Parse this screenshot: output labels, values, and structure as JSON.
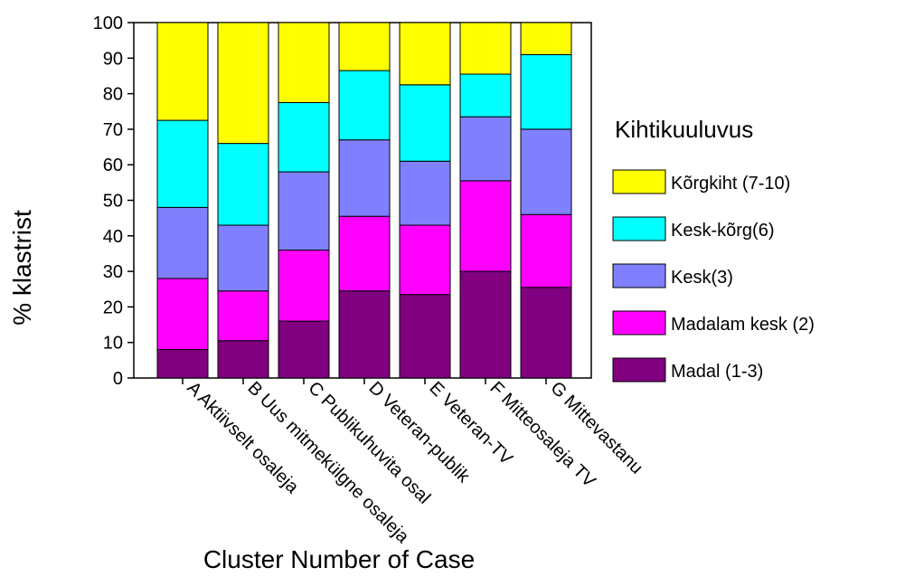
{
  "chart_data": {
    "type": "bar",
    "stacked": true,
    "categories": [
      "A Aktiivselt osaleja",
      "B Uus mitmekülgne osaleja",
      "C Publikuhuvita osal",
      "D Veteran-publik",
      "E Veteran-TV",
      "F Mitteosaleja TV",
      "G Mittevastanu"
    ],
    "series": [
      {
        "name": "Madal (1-3)",
        "color": "#800080",
        "values": [
          8,
          10.5,
          16,
          24.5,
          23.5,
          30,
          25.5
        ]
      },
      {
        "name": "Madalam kesk (2)",
        "color": "#ff00ff",
        "values": [
          20,
          14,
          20,
          21,
          19.5,
          25.5,
          20.5
        ]
      },
      {
        "name": "Kesk(3)",
        "color": "#8080ff",
        "values": [
          20,
          18.5,
          22,
          21.5,
          18,
          18,
          24
        ]
      },
      {
        "name": "Kesk-kõrg(6)",
        "color": "#00ffff",
        "values": [
          24.5,
          23,
          19.5,
          19.5,
          21.5,
          12,
          21
        ]
      },
      {
        "name": "Kõrgkiht (7-10)",
        "color": "#ffff00",
        "values": [
          27.5,
          34,
          22.5,
          13.5,
          17.5,
          14.5,
          9
        ]
      }
    ],
    "xlabel": "Cluster Number of Case",
    "ylabel": "% klastrist",
    "ylim": [
      0,
      100
    ],
    "yticks": [
      "0",
      "10",
      "20",
      "30",
      "40",
      "50",
      "60",
      "70",
      "80",
      "90",
      "100"
    ],
    "legend_title": "Kihtikuuluvus",
    "legend_order": [
      "Kõrgkiht (7-10)",
      "Kesk-kõrg(6)",
      "Kesk(3)",
      "Madalam kesk (2)",
      "Madal (1-3)"
    ],
    "legend_position": "right",
    "grid": false
  }
}
